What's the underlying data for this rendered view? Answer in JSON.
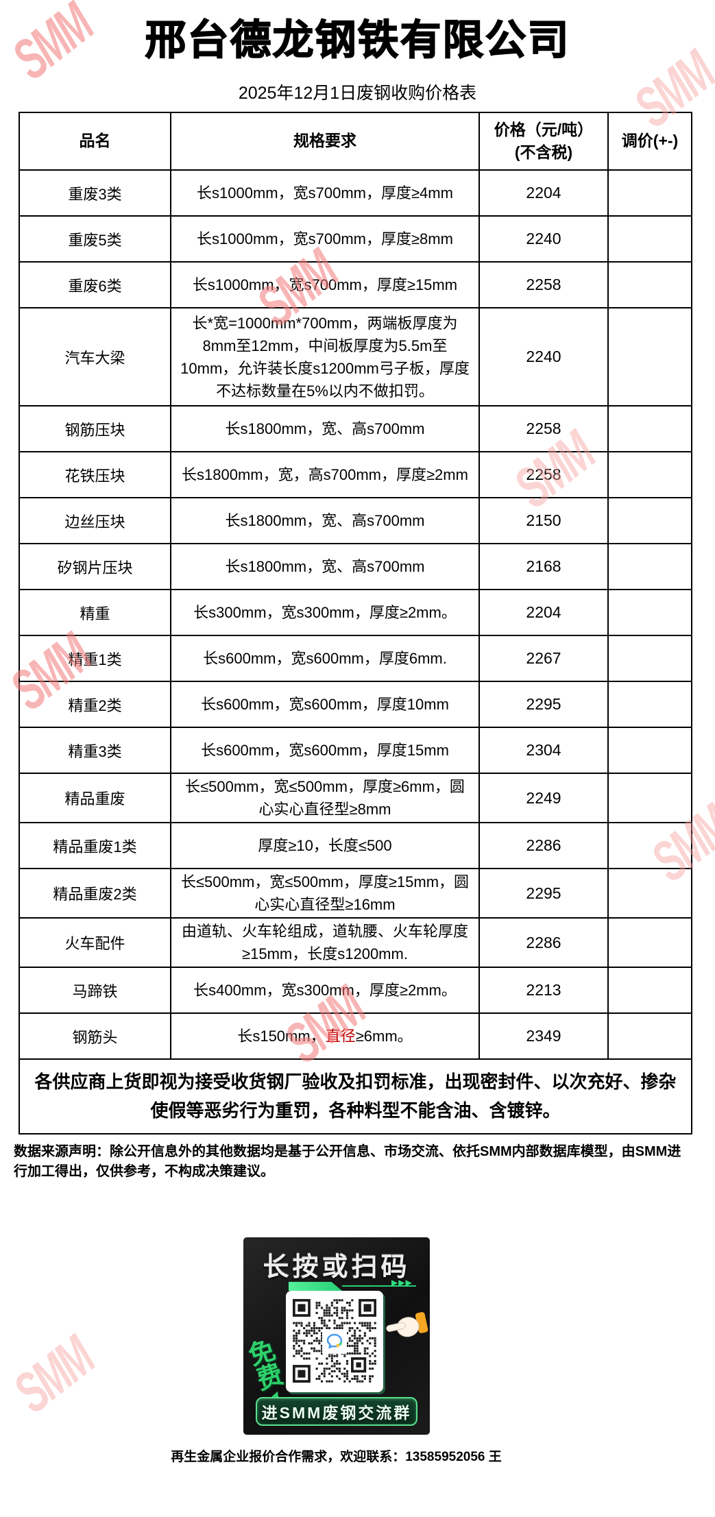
{
  "watermark": "SMM",
  "title": "邢台德龙钢铁有限公司",
  "subtitle": "2025年12月1日废钢收购价格表",
  "table": {
    "headers": {
      "name": "品名",
      "spec": "规格要求",
      "price_line1": "价格（元/吨）",
      "price_line2": "(不含税)",
      "adjust": "调价(+-)"
    },
    "rows": [
      {
        "name": "重废3类",
        "spec": [
          {
            "t": "长s1000mm，宽s700mm，厚度≥4mm"
          }
        ],
        "price": "2204"
      },
      {
        "name": "重废5类",
        "spec": [
          {
            "t": "长s1000mm，宽s700mm，厚度≥8mm"
          }
        ],
        "price": "2240"
      },
      {
        "name": "重废6类",
        "spec": [
          {
            "t": "长s1000mm，宽s700mm，厚度≥15mm"
          }
        ],
        "price": "2258"
      },
      {
        "name": "汽车大梁",
        "spec": [
          {
            "t": "长*宽=1000mm*700mm，两端板厚度为8mm至12mm，中间板厚度为5.5m至10mm，允许装长度s1200mm弓子板，厚度不达标数量在5%以内不做扣罚。"
          }
        ],
        "price": "2240"
      },
      {
        "name": "钢筋压块",
        "spec": [
          {
            "t": "长s1800mm，宽、高s700mm"
          }
        ],
        "price": "2258"
      },
      {
        "name": "花铁压块",
        "spec": [
          {
            "t": "长s1800mm，宽，高s700mm，厚度≥2mm"
          }
        ],
        "price": "2258"
      },
      {
        "name": "边丝压块",
        "spec": [
          {
            "t": "长s1800mm，宽、高s700mm"
          }
        ],
        "price": "2150"
      },
      {
        "name": "矽钢片压块",
        "spec": [
          {
            "t": "长s1800mm，宽、高s700mm"
          }
        ],
        "price": "2168"
      },
      {
        "name": "精重",
        "spec": [
          {
            "t": "长s300mm，宽s300mm，厚度≥2mm。"
          }
        ],
        "price": "2204"
      },
      {
        "name": "精重1类",
        "spec": [
          {
            "t": "长s600mm，宽s600mm，厚度6mm."
          }
        ],
        "price": "2267"
      },
      {
        "name": "精重2类",
        "spec": [
          {
            "t": "长s600mm，宽s600mm，厚度10mm"
          }
        ],
        "price": "2295"
      },
      {
        "name": "精重3类",
        "spec": [
          {
            "t": "长s600mm，宽s600mm，厚度15mm"
          }
        ],
        "price": "2304"
      },
      {
        "name": "精品重废",
        "spec": [
          {
            "t": "长≤500mm，宽≤500mm，厚度≥6mm，圆心实心直径型≥8mm"
          }
        ],
        "price": "2249"
      },
      {
        "name": "精品重废1类",
        "spec": [
          {
            "t": "厚度≥10，长度≤500"
          }
        ],
        "price": "2286"
      },
      {
        "name": "精品重废2类",
        "spec": [
          {
            "t": "长≤500mm，宽≤500mm，厚度≥15mm，圆心实心直径型≥16mm"
          }
        ],
        "price": "2295"
      },
      {
        "name": "火车配件",
        "spec": [
          {
            "t": "由道轨、火车轮组成，道轨腰、火车轮厚度≥15mm，长度s1200mm."
          }
        ],
        "price": "2286"
      },
      {
        "name": "马蹄铁",
        "spec": [
          {
            "t": "长s400mm，宽s300mm，厚度≥2mm。"
          }
        ],
        "price": "2213"
      },
      {
        "name": "钢筋头",
        "spec": [
          {
            "t": "长s150mm，"
          },
          {
            "t": "直径",
            "red": true
          },
          {
            "t": "≥6mm。"
          }
        ],
        "price": "2349"
      }
    ],
    "notice": "各供应商上货即视为接受收货钢厂验收及扣罚标准，出现密封件、以次充好、掺杂使假等恶劣行为重罚，各种料型不能含油、含镀锌。"
  },
  "disclaimer": "数据来源声明：除公开信息外的其他数据均是基于公开信息、市场交流、依托SMM内部数据库模型，由SMM进行加工得出，仅供参考，不构成决策建议。",
  "qr_banner": {
    "headline": "长按或扫码",
    "free_label": "免费",
    "arrows": "▶▶▶",
    "button_label": "进SMM废钢交流群"
  },
  "contact": "再生金属企业报价合作需求，欢迎联系：13585952056 王"
}
